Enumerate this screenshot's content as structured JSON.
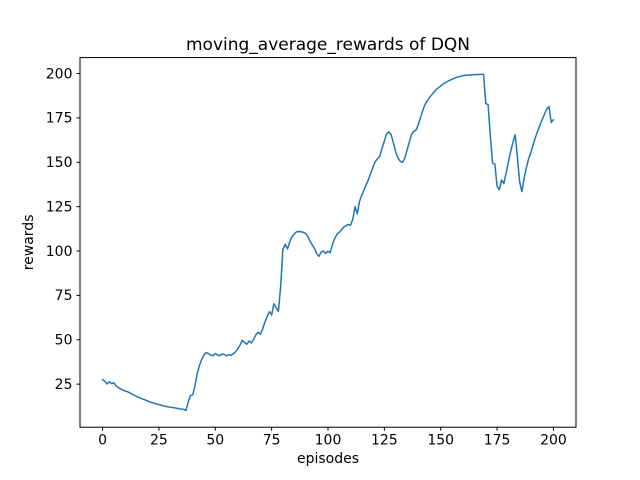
{
  "chart_data": {
    "type": "line",
    "title": "moving_average_rewards of DQN",
    "xlabel": "episodes",
    "ylabel": "rewards",
    "x_ticks": [
      0,
      25,
      50,
      75,
      100,
      125,
      150,
      175,
      200
    ],
    "y_ticks": [
      25,
      50,
      75,
      100,
      125,
      150,
      175,
      200
    ],
    "xlim": [
      -10,
      210
    ],
    "ylim": [
      0.74,
      208.97
    ],
    "grid": false,
    "legend": "none",
    "line_color": "#1f77b4",
    "series": [
      {
        "name": "moving_average_rewards",
        "x_start": 0,
        "x_step": 1,
        "y": [
          27.6,
          26.6,
          25.1,
          26.3,
          25.3,
          25.8,
          24.0,
          23.1,
          22.3,
          21.7,
          21.1,
          20.8,
          20.1,
          19.5,
          18.8,
          18.1,
          17.5,
          17.0,
          16.5,
          16.0,
          15.5,
          15.0,
          14.6,
          14.2,
          13.8,
          13.5,
          13.1,
          12.8,
          12.5,
          12.2,
          12.0,
          11.8,
          11.6,
          11.4,
          11.1,
          10.9,
          10.8,
          10.2,
          15.0,
          18.5,
          19.0,
          24.0,
          31.0,
          35.5,
          39.0,
          41.5,
          42.8,
          42.2,
          41.4,
          41.0,
          42.3,
          41.4,
          41.0,
          42.0,
          41.8,
          40.9,
          41.6,
          41.2,
          42.1,
          43.2,
          45.0,
          47.0,
          49.7,
          48.5,
          47.5,
          49.3,
          48.2,
          50.2,
          52.8,
          54.2,
          53.2,
          56.0,
          60.0,
          63.0,
          65.8,
          64.0,
          70.3,
          68.0,
          66.0,
          80.0,
          101.0,
          103.8,
          101.2,
          105.0,
          108.0,
          109.5,
          110.8,
          111.0,
          110.9,
          110.5,
          110.0,
          108.5,
          105.5,
          103.5,
          101.5,
          98.5,
          97.0,
          99.5,
          100.0,
          98.6,
          100.0,
          99.0,
          104.0,
          107.0,
          109.5,
          110.5,
          112.0,
          113.5,
          114.2,
          115.0,
          114.5,
          118.0,
          125.0,
          121.0,
          128.0,
          131.5,
          134.5,
          137.5,
          140.5,
          144.0,
          147.5,
          150.5,
          152.0,
          153.5,
          158.0,
          162.0,
          166.0,
          167.2,
          165.5,
          161.0,
          156.0,
          152.5,
          150.5,
          150.0,
          152.0,
          156.5,
          161.0,
          165.5,
          167.5,
          168.0,
          171.0,
          175.0,
          179.0,
          182.5,
          184.5,
          186.5,
          188.0,
          189.5,
          191.0,
          192.0,
          193.0,
          194.0,
          194.8,
          195.5,
          196.2,
          196.8,
          197.3,
          197.8,
          198.2,
          198.5,
          198.8,
          199.0,
          199.1,
          199.2,
          199.3,
          199.4,
          199.4,
          199.5,
          199.5,
          199.5,
          183.0,
          182.5,
          165.0,
          149.5,
          149.0,
          136.5,
          134.5,
          140.0,
          138.0,
          144.0,
          150.0,
          156.0,
          161.0,
          165.5,
          153.0,
          139.0,
          133.5,
          141.0,
          147.0,
          152.0,
          155.5,
          160.0,
          164.0,
          167.5,
          171.0,
          174.0,
          177.0,
          180.0,
          181.4,
          172.5,
          174.0
        ]
      }
    ]
  }
}
